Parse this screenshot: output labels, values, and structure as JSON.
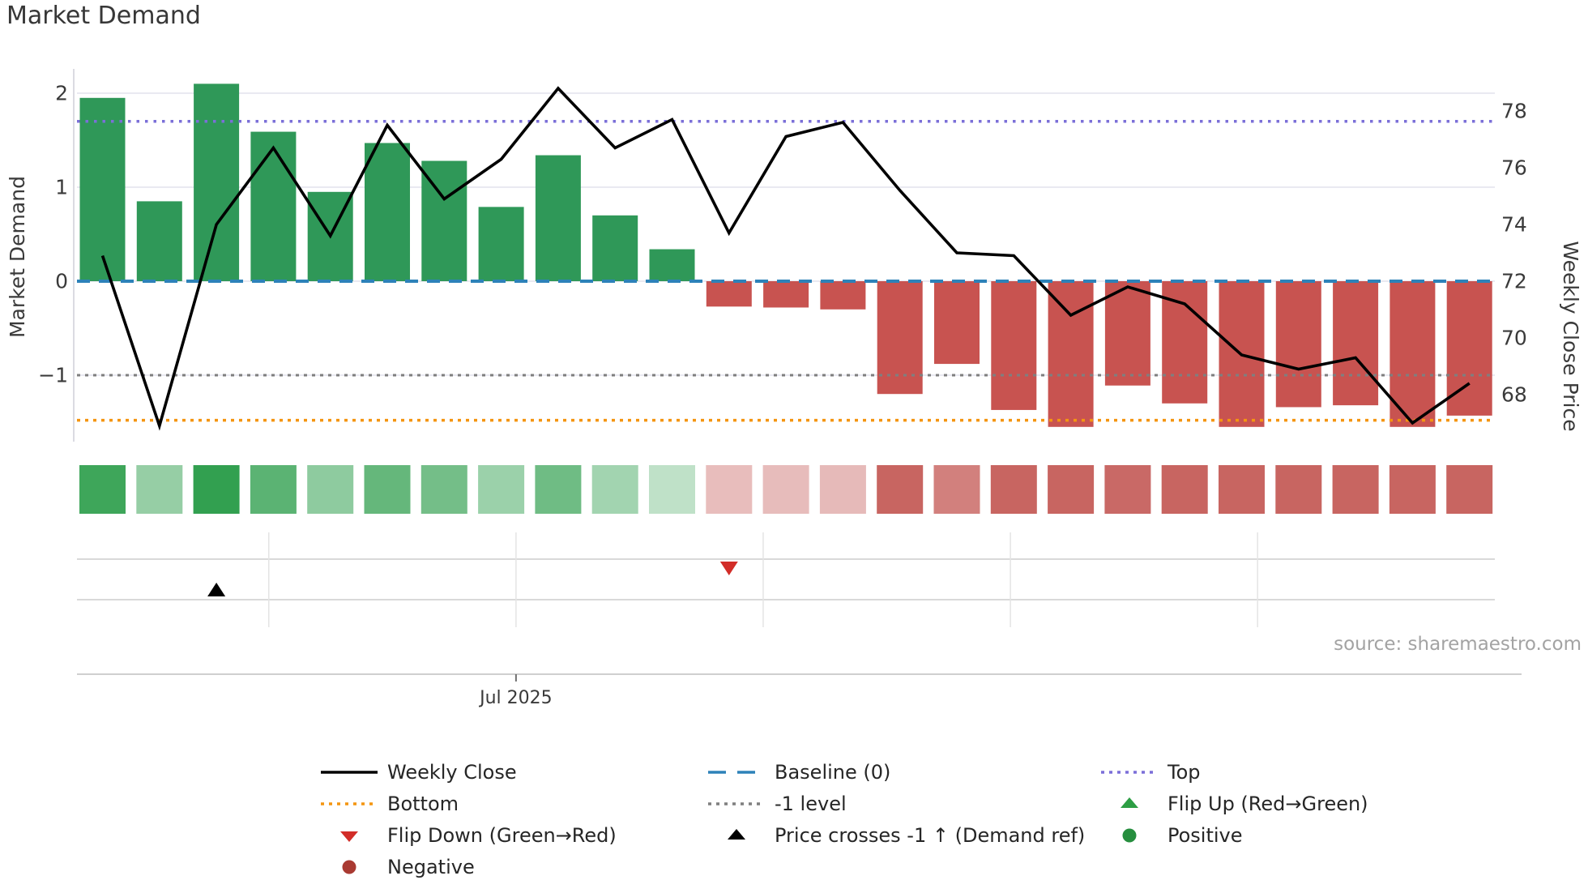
{
  "title": "Market Demand",
  "source_text": "source: sharemaestro.com",
  "chart_data": {
    "type": "bar+line",
    "weeks": 25,
    "series": [
      {
        "name": "Market Demand",
        "axis": "left",
        "values": [
          1.95,
          0.85,
          2.1,
          1.59,
          0.95,
          1.47,
          1.28,
          0.79,
          1.34,
          0.7,
          0.34,
          -0.27,
          -0.28,
          -0.3,
          -1.2,
          -0.88,
          -1.37,
          -1.55,
          -1.11,
          -1.3,
          -1.55,
          -1.34,
          -1.32,
          -1.55,
          -1.43
        ]
      },
      {
        "name": "Weekly Close",
        "axis": "right",
        "values": [
          72.9,
          66.9,
          74.0,
          76.7,
          73.6,
          77.5,
          74.9,
          76.3,
          78.8,
          76.7,
          77.7,
          73.7,
          77.1,
          77.6,
          75.2,
          73.0,
          72.9,
          70.8,
          71.8,
          71.2,
          69.4,
          68.9,
          69.3,
          67.0,
          68.4
        ]
      }
    ],
    "heatmap_strip": {
      "note": "intensity cells mirror Market Demand sign/magnitude",
      "values_ref": "series.0.values"
    },
    "reference_lines": {
      "baseline": 0,
      "top": 1.7,
      "bottom": -1.48,
      "minus_one_level": -1
    },
    "event_markers": {
      "flip_down_week": 12,
      "price_cross_up_week": 3
    },
    "left_axis": {
      "label": "Market Demand",
      "ticks": [
        "2",
        "1",
        "0",
        "−1"
      ],
      "tick_values": [
        2,
        1,
        0,
        -1
      ]
    },
    "right_axis": {
      "label": "Weekly Close Price",
      "ticks": [
        "78",
        "76",
        "74",
        "72",
        "70",
        "68"
      ],
      "tick_values": [
        78,
        76,
        74,
        72,
        70,
        68
      ]
    },
    "x_axis": {
      "tick_label": "Jul 2025",
      "tick_week": 8.26,
      "month_gridline_weeks": [
        3.92,
        8.26,
        12.6,
        16.94,
        21.28
      ]
    },
    "grid": "horizontal light gridlines on, legend below chart"
  },
  "colors": {
    "bar_positive": "#2f9858",
    "bar_negative": "#c85350",
    "price_line": "#000000",
    "baseline": "#2d82b9",
    "top_line": "#7b6fd8",
    "bottom_line": "#f49511",
    "minus_one_line": "#7f7f7f",
    "heat_green_base": "#32a050",
    "heat_red_base": "#ba3e3a",
    "flip_up": "#2d9e44",
    "flip_down": "#d22d28",
    "positive_dot": "#268e3e",
    "negative_dot": "#a93a32",
    "gridline": "#e9e9f1",
    "panel_line": "#d9d9d9",
    "axis_text": "#3a3a3a",
    "source_text": "#a3a3a3"
  },
  "legend": {
    "items": [
      {
        "label": "Weekly Close",
        "marker": "line",
        "color": "#000000",
        "col": 0,
        "row": 0
      },
      {
        "label": "Baseline (0)",
        "marker": "dashed",
        "color": "#2d82b9",
        "col": 1,
        "row": 0
      },
      {
        "label": "Top",
        "marker": "dotted",
        "color": "#7b6fd8",
        "col": 2,
        "row": 0
      },
      {
        "label": "Bottom",
        "marker": "dotted",
        "color": "#f49511",
        "col": 0,
        "row": 1
      },
      {
        "label": "-1 level",
        "marker": "dotted",
        "color": "#7f7f7f",
        "col": 1,
        "row": 1
      },
      {
        "label": "Flip Up (Red→Green)",
        "marker": "triangle-up",
        "color": "#2d9e44",
        "col": 2,
        "row": 1
      },
      {
        "label": "Flip Down (Green→Red)",
        "marker": "triangle-down",
        "color": "#d22d28",
        "col": 0,
        "row": 2
      },
      {
        "label": "Price crosses -1 ↑ (Demand ref)",
        "marker": "triangle-up",
        "color": "#000000",
        "col": 1,
        "row": 2
      },
      {
        "label": "Positive",
        "marker": "circle",
        "color": "#268e3e",
        "col": 2,
        "row": 2
      },
      {
        "label": "Negative",
        "marker": "circle",
        "color": "#a93a32",
        "col": 0,
        "row": 3
      }
    ]
  }
}
